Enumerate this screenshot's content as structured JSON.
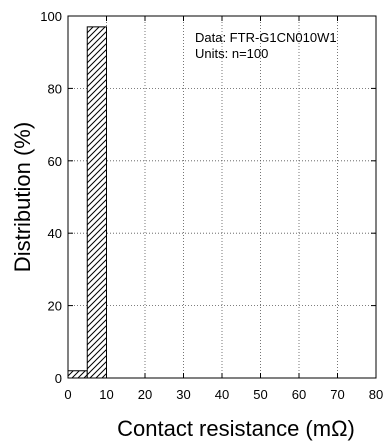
{
  "chart_data": {
    "type": "bar",
    "title": "",
    "xlabel": "Contact resistance (mΩ)",
    "ylabel": "Distribution (%)",
    "xlim": [
      0,
      80
    ],
    "ylim": [
      0,
      100
    ],
    "x_ticks": [
      0,
      10,
      20,
      30,
      40,
      50,
      60,
      70,
      80
    ],
    "y_ticks": [
      0,
      20,
      40,
      60,
      80,
      100
    ],
    "x_tick_labels": [
      "0",
      "10",
      "20",
      "30",
      "40",
      "50",
      "60",
      "70",
      "80"
    ],
    "y_tick_labels": [
      "0",
      "20",
      "40",
      "60",
      "80",
      "100"
    ],
    "bins": [
      {
        "x_start": 0,
        "x_end": 5,
        "value": 2
      },
      {
        "x_start": 5,
        "x_end": 10,
        "value": 97
      }
    ],
    "grid": true,
    "bar_fill": "hatched",
    "annotations": [
      "Data: FTR-G1CN010W1",
      "Units: n=100"
    ]
  }
}
